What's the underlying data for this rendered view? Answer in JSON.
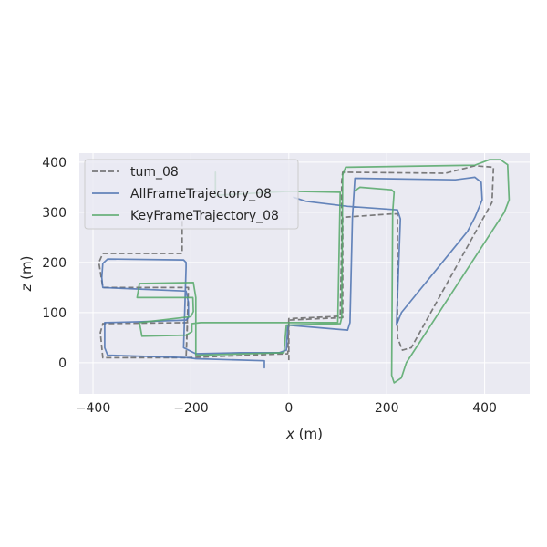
{
  "chart_data": {
    "type": "line",
    "title": "",
    "xlabel_var": "x",
    "xlabel_unit": " (m)",
    "ylabel_var": "z",
    "ylabel_unit": " (m)",
    "xlim": [
      -428,
      492
    ],
    "ylim": [
      -62,
      418
    ],
    "xticks": [
      -400,
      -200,
      0,
      200,
      400
    ],
    "xtick_labels": [
      "−400",
      "−200",
      "0",
      "200",
      "400"
    ],
    "yticks": [
      0,
      100,
      200,
      300,
      400
    ],
    "ytick_labels": [
      "0",
      "100",
      "200",
      "300",
      "400"
    ],
    "grid": true,
    "legend_position": "top-left",
    "series": [
      {
        "name": "tum_08",
        "color": "#666666",
        "style": "dashed",
        "points": [
          [
            0,
            5
          ],
          [
            0,
            85
          ],
          [
            110,
            90
          ],
          [
            110,
            290
          ],
          [
            210,
            297
          ],
          [
            222,
            297
          ],
          [
            222,
            225
          ],
          [
            222,
            50
          ],
          [
            232,
            25
          ],
          [
            250,
            30
          ],
          [
            415,
            320
          ],
          [
            418,
            390
          ],
          [
            380,
            393
          ],
          [
            320,
            378
          ],
          [
            110,
            380
          ],
          [
            108,
            362
          ],
          [
            108,
            245
          ],
          [
            105,
            93
          ],
          [
            0,
            88
          ],
          [
            -2,
            18
          ],
          [
            -210,
            10
          ],
          [
            -207,
            80
          ],
          [
            -380,
            78
          ],
          [
            -385,
            60
          ],
          [
            -380,
            10
          ],
          [
            -210,
            10
          ],
          [
            -205,
            150
          ],
          [
            -380,
            150
          ],
          [
            -388,
            200
          ],
          [
            -380,
            218
          ],
          [
            -218,
            218
          ],
          [
            -218,
            300
          ]
        ]
      },
      {
        "name": "AllFrameTrajectory_08",
        "color": "#4c72b0",
        "style": "solid",
        "points": [
          [
            -50,
            -10
          ],
          [
            -50,
            4
          ],
          [
            -190,
            8
          ],
          [
            -205,
            10
          ],
          [
            -370,
            15
          ],
          [
            -376,
            30
          ],
          [
            -376,
            80
          ],
          [
            -300,
            82
          ],
          [
            -210,
            85
          ],
          [
            -205,
            90
          ],
          [
            -205,
            120
          ],
          [
            -210,
            143
          ],
          [
            -380,
            150
          ],
          [
            -382,
            170
          ],
          [
            -380,
            198
          ],
          [
            -370,
            207
          ],
          [
            -215,
            205
          ],
          [
            -210,
            200
          ],
          [
            -210,
            190
          ],
          [
            -215,
            30
          ],
          [
            -190,
            18
          ],
          [
            -100,
            20
          ],
          [
            -20,
            20
          ],
          [
            -5,
            25
          ],
          [
            -2,
            75
          ],
          [
            120,
            65
          ],
          [
            125,
            80
          ],
          [
            130,
            290
          ],
          [
            135,
            368
          ],
          [
            340,
            365
          ],
          [
            380,
            370
          ],
          [
            393,
            360
          ],
          [
            395,
            325
          ],
          [
            380,
            290
          ],
          [
            365,
            262
          ],
          [
            230,
            100
          ],
          [
            220,
            75
          ],
          [
            228,
            287
          ],
          [
            222,
            305
          ],
          [
            120,
            312
          ],
          [
            35,
            322
          ],
          [
            10,
            330
          ]
        ]
      },
      {
        "name": "KeyFrameTrajectory_08",
        "color": "#55a868",
        "style": "solid",
        "points": [
          [
            -150,
            380
          ],
          [
            -150,
            334
          ],
          [
            -148,
            334
          ],
          [
            0,
            342
          ],
          [
            105,
            340
          ],
          [
            100,
            80
          ],
          [
            -180,
            80
          ],
          [
            -198,
            78
          ],
          [
            -198,
            62
          ],
          [
            -210,
            55
          ],
          [
            -300,
            53
          ],
          [
            -305,
            80
          ],
          [
            -200,
            92
          ],
          [
            -195,
            102
          ],
          [
            -196,
            130
          ],
          [
            -310,
            130
          ],
          [
            -305,
            158
          ],
          [
            -195,
            160
          ],
          [
            -190,
            130
          ],
          [
            -190,
            15
          ],
          [
            -10,
            20
          ],
          [
            -5,
            75
          ],
          [
            105,
            78
          ],
          [
            108,
            90
          ],
          [
            110,
            375
          ],
          [
            116,
            390
          ],
          [
            380,
            394
          ],
          [
            410,
            405
          ],
          [
            432,
            405
          ],
          [
            447,
            395
          ],
          [
            450,
            325
          ],
          [
            440,
            300
          ],
          [
            240,
            0
          ],
          [
            230,
            -30
          ],
          [
            215,
            -40
          ],
          [
            210,
            -25
          ],
          [
            212,
            300
          ],
          [
            215,
            340
          ],
          [
            210,
            345
          ],
          [
            145,
            350
          ],
          [
            135,
            343
          ]
        ]
      }
    ]
  }
}
